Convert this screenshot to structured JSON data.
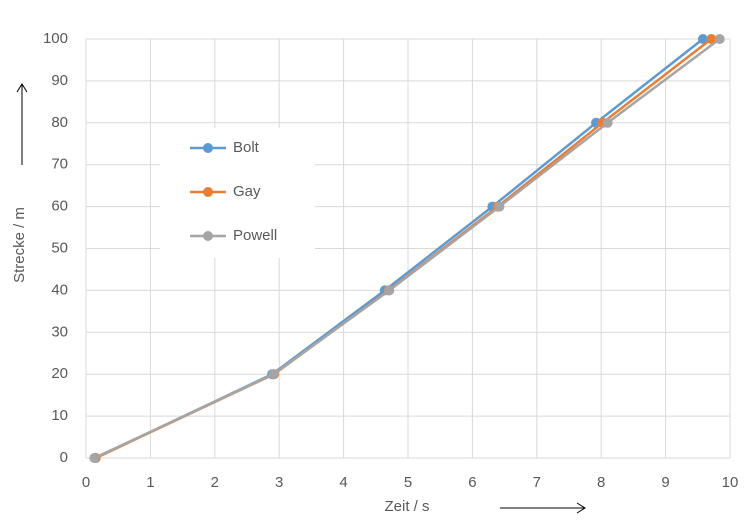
{
  "chart_data": {
    "type": "line",
    "x_label": "Zeit / s",
    "y_label": "Strecke / m",
    "xlim": [
      0,
      10
    ],
    "xticks": [
      0,
      1,
      2,
      3,
      4,
      5,
      6,
      7,
      8,
      9,
      10
    ],
    "ylim": [
      0,
      100
    ],
    "yticks": [
      0,
      10,
      20,
      30,
      40,
      50,
      60,
      70,
      80,
      90,
      100
    ],
    "grid": true,
    "legend": "left",
    "series": [
      {
        "name": "Bolt",
        "color": "#5b9bd5",
        "x": [
          0.15,
          2.89,
          4.64,
          6.31,
          7.92,
          9.58
        ],
        "values": [
          0,
          20,
          40,
          60,
          80,
          100
        ]
      },
      {
        "name": "Gay",
        "color": "#ed7d31",
        "x": [
          0.15,
          2.92,
          4.7,
          6.39,
          8.02,
          9.71
        ],
        "values": [
          0,
          20,
          40,
          60,
          80,
          100
        ]
      },
      {
        "name": "Powell",
        "color": "#a5a5a5",
        "x": [
          0.13,
          2.91,
          4.71,
          6.42,
          8.1,
          9.84
        ],
        "values": [
          0,
          20,
          40,
          60,
          80,
          100
        ]
      }
    ]
  }
}
